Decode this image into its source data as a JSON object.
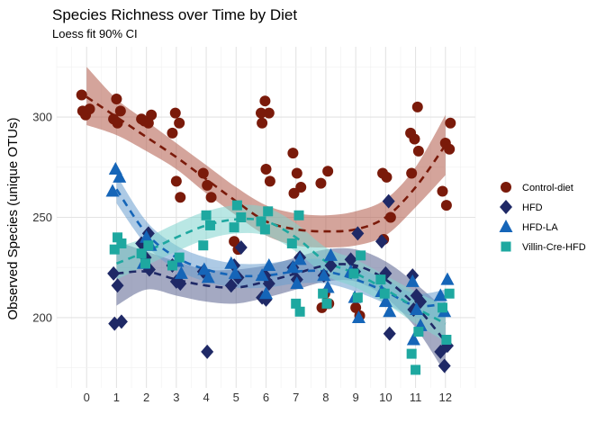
{
  "chart_data": {
    "type": "scatter",
    "title": "Species Richness over Time by Diet",
    "subtitle": "Loess fit 90% CI",
    "xlabel": "",
    "ylabel": "Observed Species (unique OTUs)",
    "x_ticks": [
      0,
      1,
      2,
      3,
      4,
      5,
      6,
      7,
      8,
      9,
      10,
      11,
      12
    ],
    "y_ticks": [
      200,
      250,
      300
    ],
    "xlim": [
      -1,
      13
    ],
    "ylim": [
      165,
      335
    ],
    "grid": true,
    "legend_position": "right",
    "series": [
      {
        "name": "Control-diet",
        "color": "#7a1a0a",
        "band_color": "#b05a48",
        "marker": "circle",
        "points": [
          [
            0,
            311
          ],
          [
            0,
            301
          ],
          [
            0,
            304
          ],
          [
            0,
            303
          ],
          [
            1,
            309
          ],
          [
            1,
            303
          ],
          [
            1,
            299
          ],
          [
            1,
            297
          ],
          [
            2,
            301
          ],
          [
            2,
            298
          ],
          [
            2,
            297
          ],
          [
            2,
            299
          ],
          [
            3,
            302
          ],
          [
            3,
            297
          ],
          [
            3,
            292
          ],
          [
            3,
            268
          ],
          [
            3,
            260
          ],
          [
            4,
            272
          ],
          [
            4,
            266
          ],
          [
            4,
            260
          ],
          [
            5,
            238
          ],
          [
            5,
            234
          ],
          [
            6,
            302
          ],
          [
            6,
            308
          ],
          [
            6,
            302
          ],
          [
            6,
            297
          ],
          [
            6,
            274
          ],
          [
            6,
            268
          ],
          [
            7,
            282
          ],
          [
            7,
            272
          ],
          [
            7,
            265
          ],
          [
            7,
            262
          ],
          [
            8,
            273
          ],
          [
            8,
            267
          ],
          [
            8,
            212
          ],
          [
            8,
            207
          ],
          [
            8,
            205
          ],
          [
            9,
            205
          ],
          [
            9,
            201
          ],
          [
            10,
            272
          ],
          [
            10,
            270
          ],
          [
            10,
            250
          ],
          [
            10,
            239
          ],
          [
            11,
            305
          ],
          [
            11,
            292
          ],
          [
            11,
            289
          ],
          [
            11,
            283
          ],
          [
            11,
            272
          ],
          [
            12,
            287
          ],
          [
            12,
            284
          ],
          [
            12,
            263
          ],
          [
            12,
            256
          ],
          [
            12,
            297
          ]
        ],
        "fit": [
          [
            0,
            310
          ],
          [
            1,
            300
          ],
          [
            2,
            290
          ],
          [
            3,
            280
          ],
          [
            4,
            269
          ],
          [
            5,
            258
          ],
          [
            6,
            248
          ],
          [
            7,
            244
          ],
          [
            8,
            243
          ],
          [
            9,
            244
          ],
          [
            10,
            250
          ],
          [
            11,
            265
          ],
          [
            12,
            286
          ]
        ],
        "band": [
          [
            0,
            325,
            296
          ],
          [
            1,
            309,
            291
          ],
          [
            2,
            298,
            283
          ],
          [
            3,
            287,
            274
          ],
          [
            4,
            276,
            262
          ],
          [
            5,
            265,
            251
          ],
          [
            6,
            256,
            241
          ],
          [
            7,
            252,
            236
          ],
          [
            8,
            251,
            235
          ],
          [
            9,
            253,
            236
          ],
          [
            10,
            259,
            241
          ],
          [
            11,
            275,
            255
          ],
          [
            12,
            301,
            271
          ]
        ]
      },
      {
        "name": "HFD",
        "color": "#1f2966",
        "band_color": "#5a6290",
        "marker": "diamond",
        "points": [
          [
            1,
            222
          ],
          [
            1,
            216
          ],
          [
            1,
            198
          ],
          [
            1,
            197
          ],
          [
            2,
            242
          ],
          [
            2,
            237
          ],
          [
            2,
            230
          ],
          [
            2,
            224
          ],
          [
            3,
            226
          ],
          [
            3,
            218
          ],
          [
            3,
            217
          ],
          [
            4,
            223
          ],
          [
            4,
            183
          ],
          [
            5,
            235
          ],
          [
            5,
            226
          ],
          [
            5,
            220
          ],
          [
            5,
            216
          ],
          [
            6,
            221
          ],
          [
            6,
            217
          ],
          [
            6,
            210
          ],
          [
            6,
            209
          ],
          [
            7,
            230
          ],
          [
            7,
            225
          ],
          [
            7,
            219
          ],
          [
            8,
            226
          ],
          [
            8,
            221
          ],
          [
            9,
            242
          ],
          [
            9,
            229
          ],
          [
            9,
            223
          ],
          [
            10,
            258
          ],
          [
            10,
            238
          ],
          [
            10,
            222
          ],
          [
            10,
            192
          ],
          [
            11,
            221
          ],
          [
            11,
            211
          ],
          [
            11,
            208
          ],
          [
            11,
            204
          ],
          [
            12,
            186
          ],
          [
            12,
            183
          ],
          [
            12,
            176
          ]
        ],
        "fit": [
          [
            1,
            222
          ],
          [
            2,
            223
          ],
          [
            3,
            219
          ],
          [
            4,
            216
          ],
          [
            5,
            215
          ],
          [
            6,
            218
          ],
          [
            7,
            222
          ],
          [
            8,
            226
          ],
          [
            9,
            226
          ],
          [
            10,
            219
          ],
          [
            11,
            206
          ],
          [
            12,
            188
          ]
        ],
        "band": [
          [
            1,
            238,
            206
          ],
          [
            2,
            233,
            214
          ],
          [
            3,
            228,
            211
          ],
          [
            4,
            224,
            208
          ],
          [
            5,
            224,
            207
          ],
          [
            6,
            226,
            210
          ],
          [
            7,
            230,
            214
          ],
          [
            8,
            234,
            218
          ],
          [
            9,
            234,
            218
          ],
          [
            10,
            228,
            210
          ],
          [
            11,
            217,
            195
          ],
          [
            12,
            204,
            172
          ]
        ]
      },
      {
        "name": "HFD-LA",
        "color": "#1565b8",
        "band_color": "#6a9fd0",
        "marker": "triangle",
        "points": [
          [
            1,
            274
          ],
          [
            1,
            270
          ],
          [
            1,
            263
          ],
          [
            2,
            240
          ],
          [
            2,
            236
          ],
          [
            2,
            227
          ],
          [
            3,
            228
          ],
          [
            3,
            222
          ],
          [
            4,
            224
          ],
          [
            4,
            220
          ],
          [
            5,
            227
          ],
          [
            5,
            222
          ],
          [
            6,
            226
          ],
          [
            6,
            221
          ],
          [
            6,
            212
          ],
          [
            7,
            229
          ],
          [
            7,
            225
          ],
          [
            7,
            217
          ],
          [
            8,
            231
          ],
          [
            8,
            221
          ],
          [
            8,
            215
          ],
          [
            9,
            223
          ],
          [
            9,
            210
          ],
          [
            9,
            200
          ],
          [
            10,
            213
          ],
          [
            10,
            208
          ],
          [
            10,
            203
          ],
          [
            11,
            218
          ],
          [
            11,
            204
          ],
          [
            11,
            196
          ],
          [
            11,
            189
          ],
          [
            12,
            219
          ],
          [
            12,
            211
          ],
          [
            12,
            203
          ]
        ],
        "fit": [
          [
            1,
            264
          ],
          [
            2,
            242
          ],
          [
            3,
            230
          ],
          [
            4,
            224
          ],
          [
            5,
            221
          ],
          [
            6,
            221
          ],
          [
            7,
            223
          ],
          [
            8,
            223
          ],
          [
            9,
            219
          ],
          [
            10,
            213
          ],
          [
            11,
            206
          ],
          [
            12,
            207
          ]
        ],
        "band": [
          [
            1,
            271,
            257
          ],
          [
            2,
            248,
            236
          ],
          [
            3,
            236,
            224
          ],
          [
            4,
            230,
            218
          ],
          [
            5,
            227,
            215
          ],
          [
            6,
            227,
            215
          ],
          [
            7,
            229,
            217
          ],
          [
            8,
            229,
            217
          ],
          [
            9,
            225,
            213
          ],
          [
            10,
            219,
            207
          ],
          [
            11,
            212,
            200
          ],
          [
            12,
            214,
            200
          ]
        ]
      },
      {
        "name": "Villin-Cre-HFD",
        "color": "#1ea8a0",
        "band_color": "#80d4ce",
        "marker": "square",
        "points": [
          [
            1,
            240
          ],
          [
            1,
            237
          ],
          [
            1,
            234
          ],
          [
            2,
            236
          ],
          [
            2,
            232
          ],
          [
            2,
            227
          ],
          [
            3,
            230
          ],
          [
            3,
            226
          ],
          [
            4,
            251
          ],
          [
            4,
            246
          ],
          [
            4,
            236
          ],
          [
            5,
            256
          ],
          [
            5,
            250
          ],
          [
            5,
            245
          ],
          [
            6,
            253
          ],
          [
            6,
            248
          ],
          [
            6,
            244
          ],
          [
            7,
            251
          ],
          [
            7,
            237
          ],
          [
            7,
            207
          ],
          [
            7,
            203
          ],
          [
            8,
            212
          ],
          [
            8,
            207
          ],
          [
            9,
            231
          ],
          [
            9,
            222
          ],
          [
            9,
            210
          ],
          [
            10,
            219
          ],
          [
            10,
            212
          ],
          [
            11,
            193
          ],
          [
            11,
            182
          ],
          [
            11,
            174
          ],
          [
            12,
            212
          ],
          [
            12,
            205
          ],
          [
            12,
            189
          ]
        ],
        "fit": [
          [
            1,
            227
          ],
          [
            2,
            233
          ],
          [
            3,
            240
          ],
          [
            4,
            246
          ],
          [
            5,
            249
          ],
          [
            6,
            248
          ],
          [
            7,
            240
          ],
          [
            8,
            228
          ],
          [
            9,
            222
          ],
          [
            10,
            214
          ],
          [
            11,
            205
          ],
          [
            12,
            197
          ]
        ],
        "band": [
          [
            1,
            235,
            219
          ],
          [
            2,
            240,
            226
          ],
          [
            3,
            247,
            233
          ],
          [
            4,
            253,
            239
          ],
          [
            5,
            256,
            242
          ],
          [
            6,
            255,
            241
          ],
          [
            7,
            247,
            233
          ],
          [
            8,
            235,
            221
          ],
          [
            9,
            229,
            215
          ],
          [
            10,
            221,
            207
          ],
          [
            11,
            213,
            197
          ],
          [
            12,
            206,
            188
          ]
        ]
      }
    ]
  }
}
